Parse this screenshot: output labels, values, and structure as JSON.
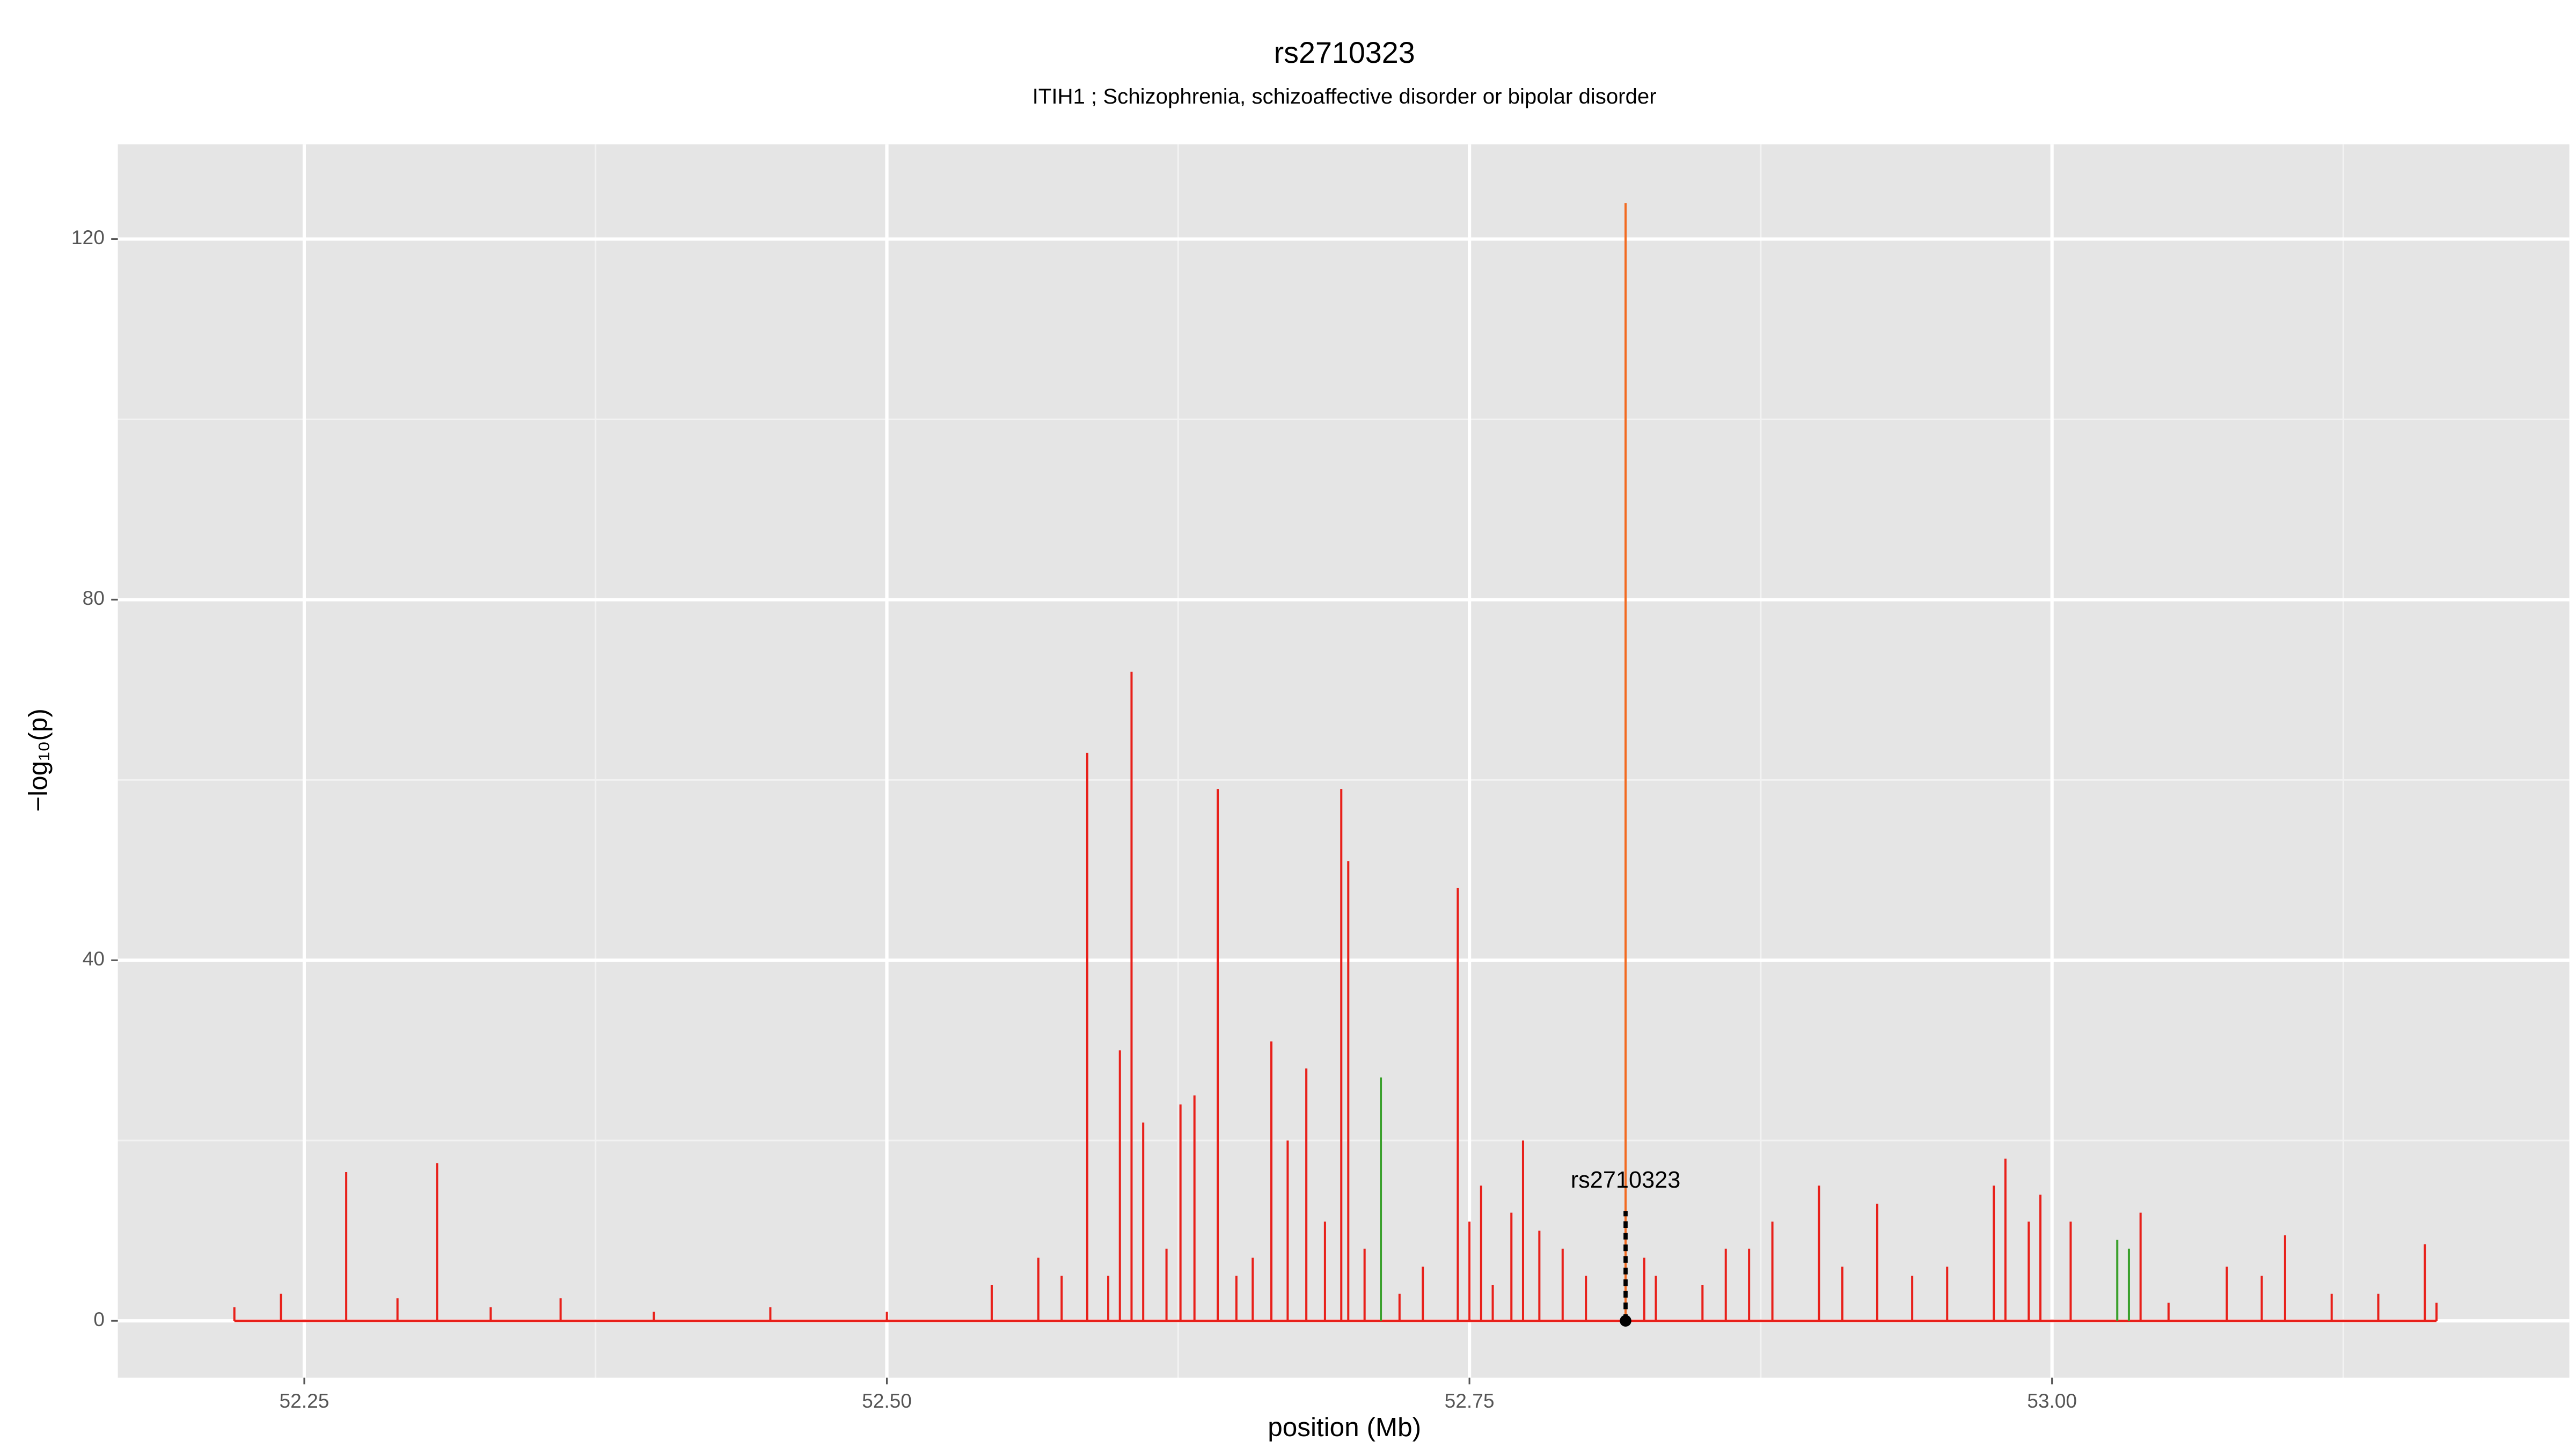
{
  "chart_data": {
    "type": "spike",
    "title": "rs2710323",
    "subtitle": "ITIH1 ; Schizophrenia, schizoaffective disorder or bipolar disorder",
    "xlabel": "position (Mb)",
    "ylabel": "−log₁₀(p)",
    "xlim": [
      52.17,
      53.222
    ],
    "ylim": [
      -6.3,
      130.5
    ],
    "xticks": [
      52.25,
      {
        "value": 52.5,
        "label": "52.50"
      },
      52.75,
      {
        "value": 53,
        "label": "53.00"
      }
    ],
    "yticks": [
      0,
      40,
      80,
      120
    ],
    "xminorticks": [
      52.375,
      52.625,
      52.875,
      53.125
    ],
    "yminorticks": [
      20,
      60,
      100
    ],
    "grid": true,
    "series": [
      {
        "name": "red",
        "color": "#e8201a",
        "x": [
          52.22,
          52.24,
          52.268,
          52.29,
          52.307,
          52.33,
          52.36,
          52.4,
          52.45,
          52.5,
          52.545,
          52.565,
          52.575,
          52.586,
          52.595,
          52.6,
          52.605,
          52.61,
          52.62,
          52.626,
          52.632,
          52.642,
          52.65,
          52.657,
          52.665,
          52.672,
          52.68,
          52.688,
          52.695,
          52.698,
          52.705,
          52.72,
          52.73,
          52.745,
          52.75,
          52.755,
          52.76,
          52.768,
          52.773,
          52.78,
          52.79,
          52.8,
          52.825,
          52.83,
          52.85,
          52.86,
          52.87,
          52.88,
          52.9,
          52.91,
          52.925,
          52.94,
          52.955,
          52.975,
          52.98,
          52.99,
          52.995,
          53.008,
          53.038,
          53.05,
          53.075,
          53.09,
          53.1,
          53.12,
          53.14,
          53.16,
          53.165
        ],
        "values": [
          1.5,
          3,
          16.5,
          2.5,
          17.5,
          1.5,
          2.5,
          1,
          1.5,
          1,
          4,
          7,
          5,
          63,
          5,
          30,
          72,
          22,
          8,
          24,
          25,
          59,
          5,
          7,
          31,
          20,
          28,
          11,
          59,
          51,
          8,
          3,
          6,
          48,
          11,
          15,
          4,
          12,
          20,
          10,
          8,
          5,
          7,
          5,
          4,
          8,
          8,
          11,
          15,
          6,
          13,
          5,
          6,
          15,
          18,
          11,
          14,
          11,
          12,
          2,
          6,
          5,
          9.5,
          3,
          3,
          8.5,
          2
        ]
      },
      {
        "name": "orange",
        "color": "#f26b21",
        "x": [
          52.817
        ],
        "values": [
          124
        ]
      },
      {
        "name": "green",
        "color": "#3aa02c",
        "x": [
          52.712,
          53.028,
          53.033
        ],
        "values": [
          27,
          9,
          8
        ]
      }
    ],
    "annotation": {
      "text": "rs2710323",
      "x": 52.817,
      "y": 0
    }
  }
}
